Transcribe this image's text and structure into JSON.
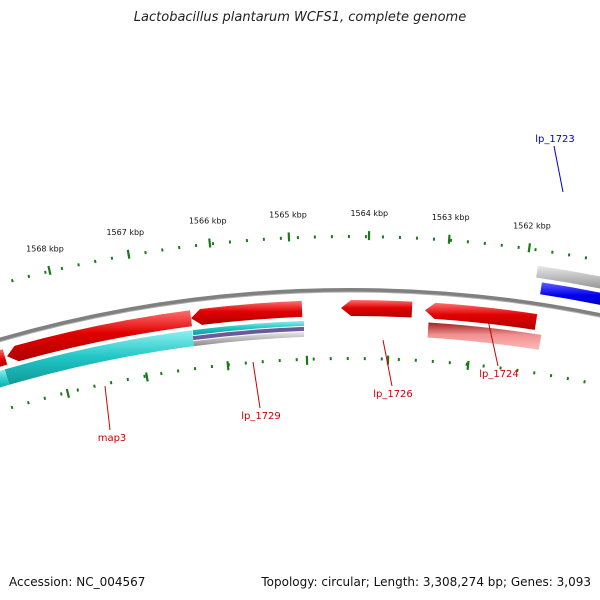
{
  "title": "Lactobacillus plantarum WCFS1, complete genome",
  "footer": {
    "accession": "Accession: NC_004567",
    "summary": "Topology: circular; Length: 3,308,274 bp; Genes: 3,093"
  },
  "colors": {
    "backbone": "#808080",
    "forward_gene": "#ee0000",
    "reverse_gene_blue": "#0000ee",
    "cds_teal": "#20c5c5",
    "tick": "#1a7a1a",
    "label_red": "#cc0000",
    "label_blue": "#0000cc"
  },
  "scale_ticks": [
    {
      "label": "1562 kbp"
    },
    {
      "label": "1563 kbp"
    },
    {
      "label": "1564 kbp"
    },
    {
      "label": "1565 kbp"
    },
    {
      "label": "1566 kbp"
    },
    {
      "label": "1567 kbp"
    },
    {
      "label": "1568 kbp"
    }
  ],
  "gene_labels": [
    {
      "name": "lp_1723",
      "color": "blue"
    },
    {
      "name": "lp_1724",
      "color": "red"
    },
    {
      "name": "lp_1726",
      "color": "red"
    },
    {
      "name": "lp_1729",
      "color": "red"
    },
    {
      "name": "map3",
      "color": "red"
    }
  ]
}
